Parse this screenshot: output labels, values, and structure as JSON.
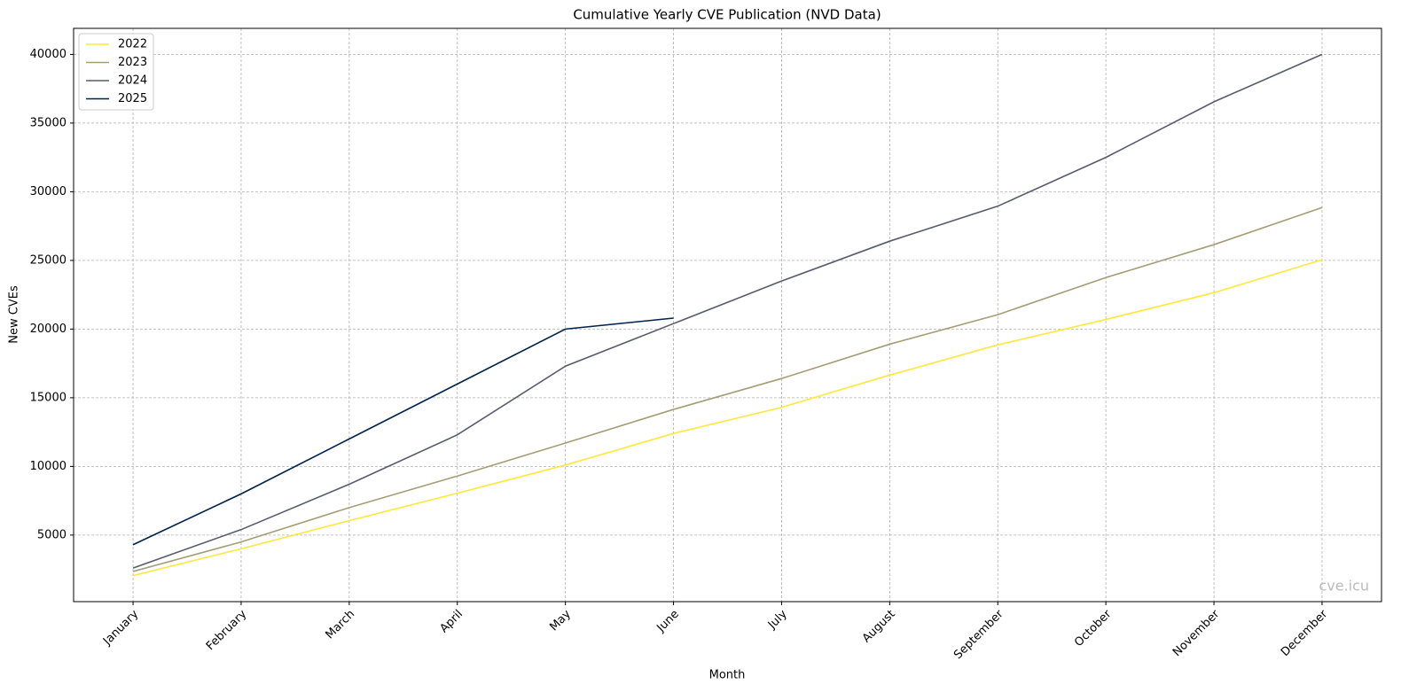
{
  "chart_data": {
    "type": "line",
    "title": "Cumulative Yearly CVE Publication (NVD Data)",
    "x_label": "Month",
    "y_label": "New CVEs",
    "annotation": "cve.icu",
    "categories": [
      "January",
      "February",
      "March",
      "April",
      "May",
      "June",
      "July",
      "August",
      "September",
      "October",
      "November",
      "December"
    ],
    "series": [
      {
        "name": "2022",
        "color": "#fee838",
        "values": [
          2050,
          4000,
          6050,
          8050,
          10100,
          12400,
          14300,
          16650,
          18850,
          20700,
          22650,
          25050
        ]
      },
      {
        "name": "2023",
        "color": "#a69d75",
        "values": [
          2350,
          4500,
          7000,
          9300,
          11700,
          14150,
          16400,
          18900,
          21050,
          23750,
          26150,
          28850
        ]
      },
      {
        "name": "2024",
        "color": "#575c6d",
        "values": [
          2600,
          5400,
          8700,
          12300,
          17300,
          20400,
          23500,
          26400,
          28950,
          32500,
          36550,
          40000
        ]
      },
      {
        "name": "2025",
        "color": "#00224e",
        "values": [
          4300,
          8000,
          12000,
          16000,
          20000,
          20800,
          null,
          null,
          null,
          null,
          null,
          null
        ]
      }
    ],
    "ylim": [
      153,
      41897
    ],
    "yticks": [
      5000,
      10000,
      15000,
      20000,
      25000,
      30000,
      35000,
      40000
    ],
    "grid": true,
    "legend": "upper left"
  }
}
